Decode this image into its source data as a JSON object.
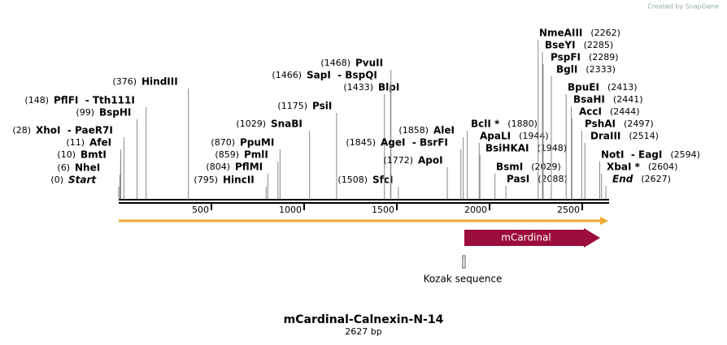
{
  "credit": "Created by SnapGene",
  "title": "mCardinal-Calnexin-N-14",
  "subtitle": "2627 bp",
  "sites": [
    {
      "name": "Start",
      "position": "(0)"
    },
    {
      "name": "NheI",
      "position": "(6)"
    },
    {
      "name": "BmtI",
      "position": "(10)"
    },
    {
      "name": "AfeI",
      "position": "(11)"
    },
    {
      "name": "XhoI  - PaeR7I",
      "position": "(28)"
    },
    {
      "name": "BspHI",
      "position": "(99)"
    },
    {
      "name": "PflFI  - Tth111I",
      "position": "(148)"
    },
    {
      "name": "HindIII",
      "position": "(376)"
    },
    {
      "name": "HincII",
      "position": "(795)"
    },
    {
      "name": "PflMI",
      "position": "(804)"
    },
    {
      "name": "PmlI",
      "position": "(859)"
    },
    {
      "name": "PpuMI",
      "position": "(870)"
    },
    {
      "name": "SnaBI",
      "position": "(1029)"
    },
    {
      "name": "PsiI",
      "position": "(1175)"
    },
    {
      "name": "SfcI",
      "position": "(1508)"
    },
    {
      "name": "BlpI",
      "position": "(1433)"
    },
    {
      "name": "SapI  - BspQI",
      "position": "(1466)"
    },
    {
      "name": "PvuII",
      "position": "(1468)"
    },
    {
      "name": "AgeI  - BsrFI",
      "position": "(1845)"
    },
    {
      "name": "ApoI",
      "position": "(1772)"
    },
    {
      "name": "AleI",
      "position": "(1858)"
    },
    {
      "name": "BclI *",
      "position": "(1880)"
    },
    {
      "name": "ApaLI",
      "position": "(1944)"
    },
    {
      "name": "BsiHKAI",
      "position": "(1948)"
    },
    {
      "name": "BsmI",
      "position": "(2029)"
    },
    {
      "name": "PasI",
      "position": "(2088)"
    },
    {
      "name": "NmeAIII",
      "position": "(2262)"
    },
    {
      "name": "BseYI",
      "position": "(2285)"
    },
    {
      "name": "PspFI",
      "position": "(2289)"
    },
    {
      "name": "BglI",
      "position": "(2333)"
    },
    {
      "name": "BpuEI",
      "position": "(2413)"
    },
    {
      "name": "BsaHI",
      "position": "(2441)"
    },
    {
      "name": "AccI",
      "position": "(2444)"
    },
    {
      "name": "PshAI",
      "position": "(2497)"
    },
    {
      "name": "DraIII",
      "position": "(2514)"
    },
    {
      "name": "NotI  - EagI",
      "position": "(2594)"
    },
    {
      "name": "XbaI *",
      "position": "(2604)"
    },
    {
      "name": "End",
      "position": "(2627)"
    }
  ],
  "ruler": {
    "length": 2627,
    "ticks": [
      500,
      1000,
      1500,
      2000,
      2500
    ]
  },
  "features": [
    {
      "name": "mCardinal"
    },
    {
      "name": "Kozak sequence"
    }
  ]
}
